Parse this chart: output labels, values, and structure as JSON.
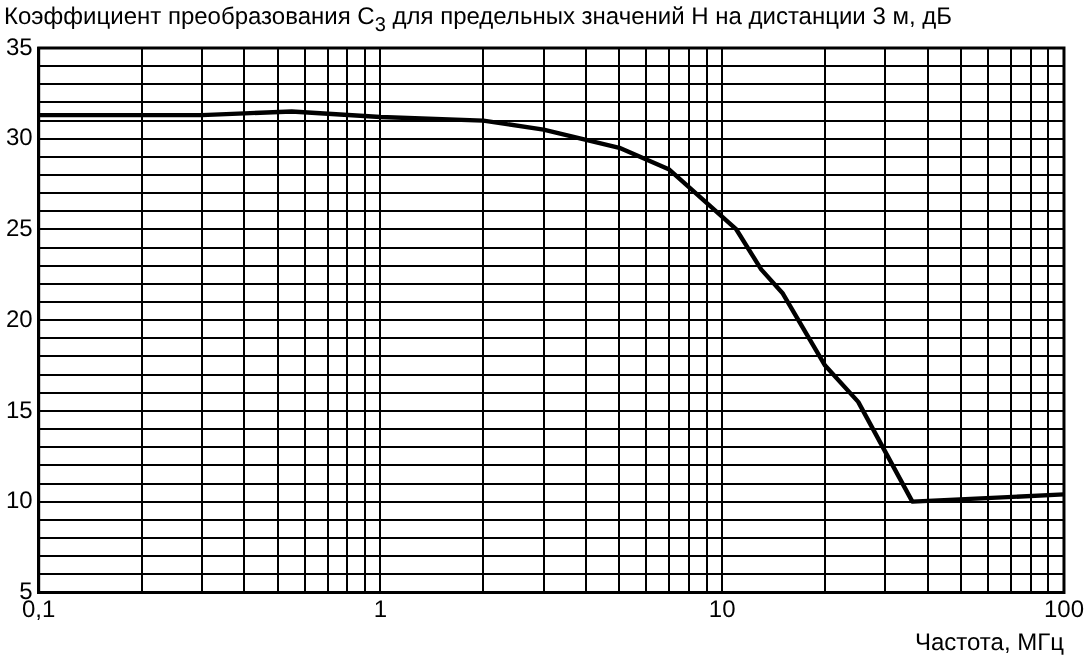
{
  "chart_data": {
    "type": "line",
    "title": "Коэффициент преобразования C$_{3}$ для предельных значений H на дистанции 3 м, дБ",
    "xlabel": "Частота, МГц",
    "log": "x",
    "grid": true,
    "legend": false,
    "marker": "none",
    "line_style": "solid",
    "x": [
      0.1,
      0.3,
      0.4,
      0.55,
      1,
      2,
      3,
      5,
      7,
      11,
      13,
      15,
      20,
      25,
      36,
      100
    ],
    "series": [
      {
        "color": "#000000",
        "values": [
          31.3,
          31.3,
          31.4,
          31.5,
          31.2,
          31.0,
          30.5,
          29.5,
          28.3,
          25.0,
          22.8,
          21.5,
          17.5,
          15.5,
          10.0,
          10.4
        ]
      }
    ],
    "xlim": [
      0.1,
      100
    ],
    "xticks": [
      {
        "value": 0.1,
        "label": "0,1"
      },
      {
        "value": 0.2,
        "label": null
      },
      {
        "value": 0.3,
        "label": null
      },
      {
        "value": 0.4,
        "label": null
      },
      {
        "value": 0.5,
        "label": null
      },
      {
        "value": 0.6,
        "label": null
      },
      {
        "value": 0.7,
        "label": null
      },
      {
        "value": 0.8,
        "label": null
      },
      {
        "value": 0.9,
        "label": null
      },
      1,
      {
        "value": 2,
        "label": null
      },
      {
        "value": 3,
        "label": null
      },
      {
        "value": 4,
        "label": null
      },
      {
        "value": 5,
        "label": null
      },
      {
        "value": 6,
        "label": null
      },
      {
        "value": 7,
        "label": null
      },
      {
        "value": 8,
        "label": null
      },
      {
        "value": 9,
        "label": null
      },
      10,
      {
        "value": 20,
        "label": null
      },
      {
        "value": 30,
        "label": null
      },
      {
        "value": 40,
        "label": null
      },
      {
        "value": 50,
        "label": null
      },
      {
        "value": 60,
        "label": null
      },
      {
        "value": 70,
        "label": null
      },
      {
        "value": 80,
        "label": null
      },
      {
        "value": 90,
        "label": null
      },
      100
    ],
    "ylim": [
      5,
      35
    ],
    "yticks": [
      5,
      {
        "value": 6,
        "label": null
      },
      {
        "value": 7,
        "label": null
      },
      {
        "value": 8,
        "label": null
      },
      {
        "value": 9,
        "label": null
      },
      10,
      {
        "value": 11,
        "label": null
      },
      {
        "value": 12,
        "label": null
      },
      {
        "value": 13,
        "label": null
      },
      {
        "value": 14,
        "label": null
      },
      15,
      {
        "value": 16,
        "label": null
      },
      {
        "value": 17,
        "label": null
      },
      {
        "value": 18,
        "label": null
      },
      {
        "value": 19,
        "label": null
      },
      20,
      {
        "value": 21,
        "label": null
      },
      {
        "value": 22,
        "label": null
      },
      {
        "value": 23,
        "label": null
      },
      {
        "value": 24,
        "label": null
      },
      25,
      {
        "value": 26,
        "label": null
      },
      {
        "value": 27,
        "label": null
      },
      {
        "value": 28,
        "label": null
      },
      {
        "value": 29,
        "label": null
      },
      30,
      {
        "value": 31,
        "label": null
      },
      {
        "value": 32,
        "label": null
      },
      {
        "value": 33,
        "label": null
      },
      {
        "value": 34,
        "label": null
      },
      35
    ]
  }
}
